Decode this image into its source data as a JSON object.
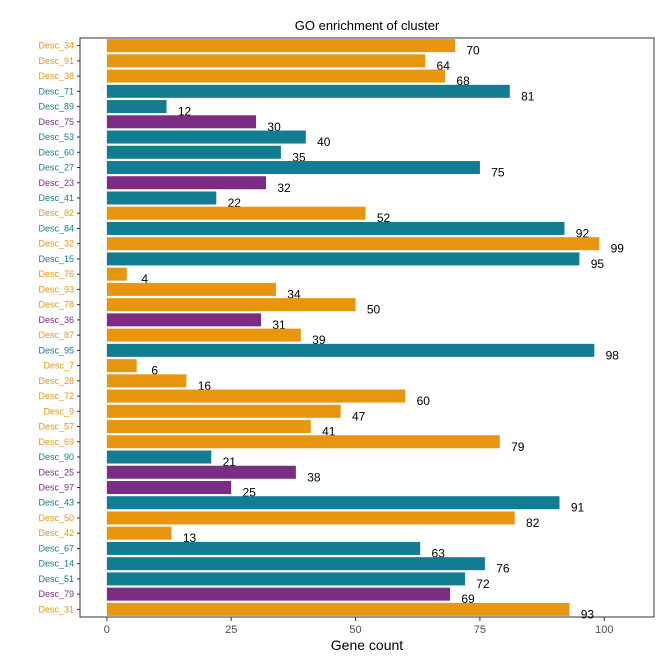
{
  "chart_data": {
    "type": "bar",
    "orientation": "horizontal",
    "title": "GO enrichment of cluster",
    "xlabel": "Gene count",
    "ylabel": "",
    "xlim": [
      -5.4,
      110
    ],
    "xticks": [
      0,
      25,
      50,
      75,
      100
    ],
    "grid": false,
    "colors": {
      "orange": "#E8960F",
      "teal": "#127D91",
      "purple": "#7B2C85"
    },
    "categories": [
      "Desc_34",
      "Desc_91",
      "Desc_38",
      "Desc_71",
      "Desc_89",
      "Desc_75",
      "Desc_53",
      "Desc_60",
      "Desc_27",
      "Desc_23",
      "Desc_41",
      "Desc_82",
      "Desc_84",
      "Desc_32",
      "Desc_15",
      "Desc_76",
      "Desc_93",
      "Desc_78",
      "Desc_36",
      "Desc_87",
      "Desc_95",
      "Desc_7",
      "Desc_28",
      "Desc_72",
      "Desc_9",
      "Desc_57",
      "Desc_69",
      "Desc_90",
      "Desc_25",
      "Desc_97",
      "Desc_43",
      "Desc_50",
      "Desc_42",
      "Desc_67",
      "Desc_14",
      "Desc_51",
      "Desc_79",
      "Desc_31"
    ],
    "values": [
      70,
      64,
      68,
      81,
      12,
      30,
      40,
      35,
      75,
      32,
      22,
      52,
      92,
      99,
      95,
      4,
      34,
      50,
      31,
      39,
      98,
      6,
      16,
      60,
      47,
      41,
      79,
      21,
      38,
      25,
      91,
      82,
      13,
      63,
      76,
      72,
      69,
      93
    ],
    "groups": [
      "orange",
      "orange",
      "orange",
      "teal",
      "teal",
      "purple",
      "teal",
      "teal",
      "teal",
      "purple",
      "teal",
      "orange",
      "teal",
      "orange",
      "teal",
      "orange",
      "orange",
      "orange",
      "purple",
      "orange",
      "teal",
      "orange",
      "orange",
      "orange",
      "orange",
      "orange",
      "orange",
      "teal",
      "purple",
      "purple",
      "teal",
      "orange",
      "orange",
      "teal",
      "teal",
      "teal",
      "purple",
      "orange"
    ]
  }
}
